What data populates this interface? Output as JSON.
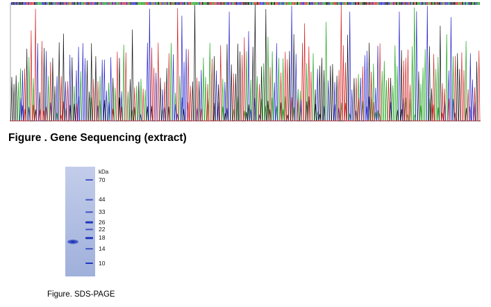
{
  "figure_sequencing": {
    "caption": "Figure . Gene Sequencing (extract)",
    "trace_colors": {
      "A": "#1aa51a",
      "C": "#2222cc",
      "G": "#111111",
      "T": "#d42020"
    },
    "base_calls_description": "sequence letters along top are illegibly small"
  },
  "figure_sds_page": {
    "caption": "Figure. SDS-PAGE",
    "unit_label": "kDa",
    "markers": [
      {
        "label": "70",
        "kda": 70
      },
      {
        "label": "44",
        "kda": 44
      },
      {
        "label": "33",
        "kda": 33
      },
      {
        "label": "26",
        "kda": 26
      },
      {
        "label": "22",
        "kda": 22
      },
      {
        "label": "18",
        "kda": 18
      },
      {
        "label": "14",
        "kda": 14
      },
      {
        "label": "10",
        "kda": 10
      }
    ],
    "gel_color": "#a9b7dd",
    "band_color": "#1a2fb8"
  }
}
